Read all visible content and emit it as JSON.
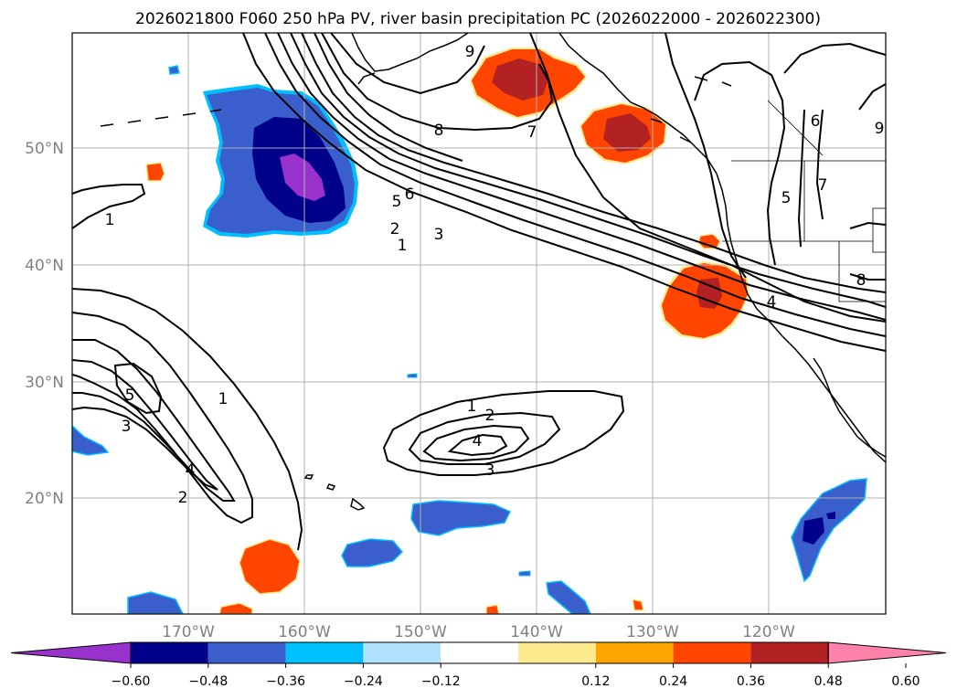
{
  "title": "2026021800 F060 250 hPa PV, river basin precipitation PC (2026022000 - 2026022300)",
  "lat_labels": [
    "50°N",
    "40°N",
    "30°N",
    "20°N"
  ],
  "lon_labels": [
    "170°W",
    "160°W",
    "150°W",
    "140°W",
    "130°W",
    "120°W"
  ],
  "colorbar": {
    "tick_labels": [
      "−0.60",
      "−0.48",
      "−0.36",
      "−0.24",
      "−0.12",
      "0.12",
      "0.24",
      "0.36",
      "0.48",
      "0.60"
    ],
    "colors": [
      "#9932cc",
      "#00008b",
      "#3a5fcd",
      "#00bfff",
      "#b0e2ff",
      "#ffffff",
      "#ffeb8f",
      "#ffa500",
      "#ff4500",
      "#b22222",
      "#ff82ab"
    ]
  },
  "pv_contour_labels": [
    "9",
    "8",
    "7",
    "6",
    "5",
    "3",
    "2",
    "1",
    "1",
    "5",
    "3",
    "4",
    "2",
    "1",
    "1",
    "2",
    "4",
    "3",
    "6",
    "7",
    "5",
    "4",
    "8",
    "9"
  ]
}
